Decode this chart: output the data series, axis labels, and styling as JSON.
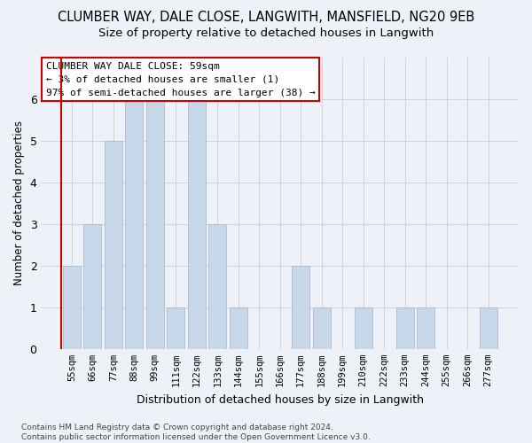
{
  "title": "CLUMBER WAY, DALE CLOSE, LANGWITH, MANSFIELD, NG20 9EB",
  "subtitle": "Size of property relative to detached houses in Langwith",
  "xlabel": "Distribution of detached houses by size in Langwith",
  "ylabel": "Number of detached properties",
  "categories": [
    "55sqm",
    "66sqm",
    "77sqm",
    "88sqm",
    "99sqm",
    "111sqm",
    "122sqm",
    "133sqm",
    "144sqm",
    "155sqm",
    "166sqm",
    "177sqm",
    "188sqm",
    "199sqm",
    "210sqm",
    "222sqm",
    "233sqm",
    "244sqm",
    "255sqm",
    "266sqm",
    "277sqm"
  ],
  "values": [
    2,
    3,
    5,
    6,
    6,
    1,
    6,
    3,
    1,
    0,
    0,
    2,
    1,
    0,
    1,
    0,
    1,
    1,
    0,
    0,
    1
  ],
  "bar_color": "#c8d8eb",
  "bar_edge_color": "#aabccc",
  "annotation_text": "CLUMBER WAY DALE CLOSE: 59sqm\n← 3% of detached houses are smaller (1)\n97% of semi-detached houses are larger (38) →",
  "annotation_box_color": "#ffffff",
  "annotation_box_edge_color": "#cc0000",
  "footnote": "Contains HM Land Registry data © Crown copyright and database right 2024.\nContains public sector information licensed under the Open Government Licence v3.0.",
  "ylim": [
    0,
    7
  ],
  "yticks": [
    0,
    1,
    2,
    3,
    4,
    5,
    6
  ],
  "grid_color": "#c8d4e0",
  "background_color": "#eef2f8",
  "title_fontsize": 10.5,
  "subtitle_fontsize": 9.5,
  "red_line_color": "#cc0000"
}
